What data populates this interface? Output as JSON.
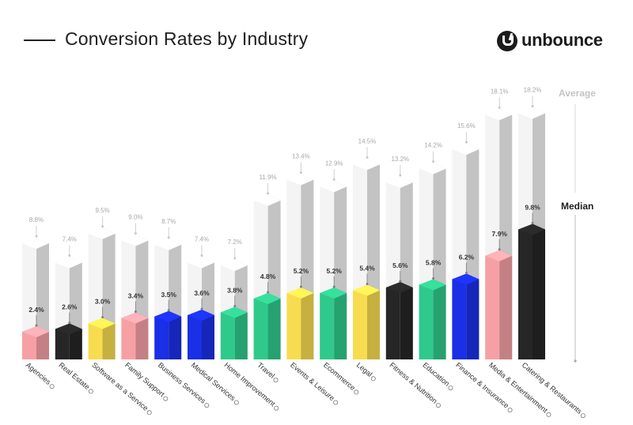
{
  "title": "Conversion Rates by Industry",
  "brand": "unbounce",
  "colors": {
    "pink": "#f6a0a6",
    "black": "#262626",
    "yellow": "#f7dc50",
    "blue": "#1a2fe6",
    "green": "#2fc98c",
    "ghost": "#f4f4f4"
  },
  "chart_data": {
    "type": "bar",
    "title": "Conversion Rates by Industry",
    "legend": [
      "Average",
      "Median"
    ],
    "legend_position": "right",
    "categories": [
      "Agencies",
      "Real Estate",
      "Software as a Service",
      "Family Support",
      "Business Services",
      "Medical Services",
      "Home Improvement",
      "Travel",
      "Events & Leisure",
      "Ecommerce",
      "Legal",
      "Fitness & Nutrition",
      "Education",
      "Finance & Insurance",
      "Media & Entertainment",
      "Catering & Restaurants"
    ],
    "series": [
      {
        "name": "Median",
        "values": [
          2.4,
          2.6,
          3.0,
          3.4,
          3.5,
          3.6,
          3.8,
          4.8,
          5.2,
          5.2,
          5.4,
          5.6,
          5.8,
          6.2,
          7.9,
          9.8
        ],
        "labels": [
          "2.4%",
          "2.6%",
          "3.0%",
          "3.4%",
          "3.5%",
          "3.6%",
          "3.8%",
          "4.8%",
          "5.2%",
          "5.2%",
          "5.4%",
          "5.6%",
          "5.8%",
          "6.2%",
          "7.9%",
          "9.8%"
        ]
      },
      {
        "name": "Average",
        "values": [
          8.8,
          7.4,
          9.5,
          9.0,
          8.7,
          7.4,
          7.2,
          11.9,
          13.4,
          12.9,
          14.5,
          13.2,
          14.2,
          15.6,
          18.1,
          18.2
        ],
        "labels": [
          "8.8%",
          "7.4%",
          "9.5%",
          "9.0%",
          "8.7%",
          "7.4%",
          "7.2%",
          "11.9%",
          "13.4%",
          "12.9%",
          "14.5%",
          "13.2%",
          "14.2%",
          "15.6%",
          "18.1%",
          "18.2%"
        ]
      }
    ],
    "bar_colors": [
      "pink",
      "black",
      "yellow",
      "pink",
      "blue",
      "blue",
      "green",
      "green",
      "yellow",
      "green",
      "yellow",
      "black",
      "green",
      "blue",
      "pink",
      "black"
    ],
    "category_icons": [
      "home-icon",
      "house-icon",
      "smiley-icon",
      "family-icon",
      "briefcase-icon",
      "heart-icon",
      "toolbox-icon",
      "plane-icon",
      "ticket-icon",
      "cart-icon",
      "gavel-icon",
      "dumbbell-icon",
      "book-icon",
      "coin-icon",
      "play-icon",
      "utensils-icon"
    ],
    "ylim": [
      0,
      20
    ],
    "grid": false
  }
}
